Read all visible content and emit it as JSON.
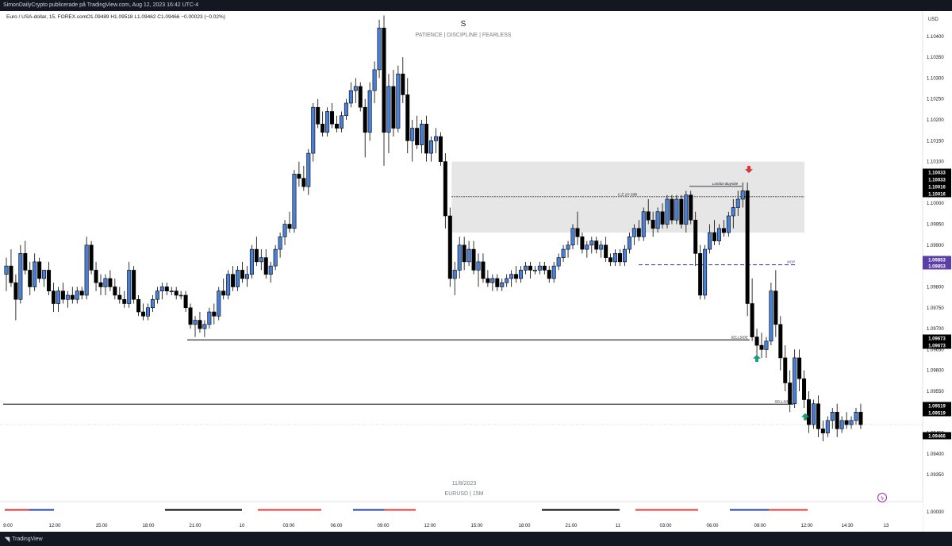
{
  "header": {
    "publish_info": "SimonDailyCrypto publicerade på TradingView.com, Aug 12, 2023 16:42 UTC-4",
    "symbol_info": "Euro / USA-dollar, 15, FOREX.com",
    "ohlc": "O1.09489  H1.09518  L1.09462  C1.09466  −0.00023 (−0.02%)"
  },
  "watermark": {
    "letter": "S",
    "motto": "PATIENCE  |  DISCIPLINE  |  FEARLESS",
    "date": "11/8/2023",
    "pair": "EURUSD  |  15M"
  },
  "footer": {
    "brand": "TradingView"
  },
  "chart_data": {
    "type": "candlestick",
    "currency_label": "USD",
    "ylim": [
      1.0932,
      1.1043
    ],
    "y_ticks": [
      "1.10400",
      "1.10350",
      "1.10300",
      "1.10250",
      "1.10200",
      "1.10150",
      "1.10100",
      "1.10050",
      "1.10000",
      "1.09950",
      "1.09900",
      "1.09850",
      "1.09800",
      "1.09750",
      "1.09700",
      "1.09650",
      "1.09600",
      "1.09550",
      "1.09500",
      "1.09450",
      "1.09400",
      "1.09350"
    ],
    "time_ticks": [
      "9:00",
      "12:00",
      "15:00",
      "18:00",
      "21:00",
      "10",
      "03:00",
      "06:00",
      "09:00",
      "12:00",
      "15:00",
      "18:00",
      "21:00",
      "11",
      "03:00",
      "06:00",
      "09:00",
      "12:00",
      "14:30",
      "13"
    ],
    "lower_pane_tick": "1.00000",
    "price_badges": [
      {
        "value": "1.10033",
        "color": "#000000"
      },
      {
        "value": "1.10033",
        "color": "#000000"
      },
      {
        "value": "1.10016",
        "color": "#000000"
      },
      {
        "value": "1.10016",
        "color": "#000000"
      },
      {
        "value": "1.09853",
        "color": "#5b3ea6"
      },
      {
        "value": "1.09853",
        "color": "#5b3ea6"
      },
      {
        "value": "1.09673",
        "color": "#000000"
      },
      {
        "value": "1.09673",
        "color": "#000000"
      },
      {
        "value": "1.09519",
        "color": "#000000"
      },
      {
        "value": "1.09519",
        "color": "#000000"
      },
      {
        "value": "1.09466",
        "color": "#000000"
      }
    ],
    "zone": {
      "top": 1.101,
      "bottom": 1.0993
    },
    "annotations": [
      {
        "label": "C.E 1H SIBI",
        "price": 1.10016
      },
      {
        "label": "London Buyside",
        "price": 1.10033
      },
      {
        "label": "MOP",
        "price": 1.09853
      },
      {
        "label": "SELLSIDE",
        "price": 1.09673
      },
      {
        "label": "SELLSIDE",
        "price": 1.09519
      }
    ],
    "arrows": [
      {
        "direction": "down",
        "color": "#e0303a"
      },
      {
        "direction": "up",
        "color": "#1a9e7a"
      },
      {
        "direction": "up",
        "color": "#1a9e7a"
      }
    ],
    "candles": [
      [
        1.0983,
        1.0987,
        1.0979,
        1.0985
      ],
      [
        1.0985,
        1.0989,
        1.098,
        1.0981
      ],
      [
        1.0981,
        1.0983,
        1.0972,
        1.0977
      ],
      [
        1.0977,
        1.099,
        1.0976,
        1.0988
      ],
      [
        1.0988,
        1.0991,
        1.0983,
        1.0984
      ],
      [
        1.0984,
        1.0986,
        1.0978,
        1.098
      ],
      [
        1.098,
        1.0988,
        1.0979,
        1.0986
      ],
      [
        1.0986,
        1.0987,
        1.0981,
        1.0982
      ],
      [
        1.0982,
        1.0984,
        1.098,
        1.0984
      ],
      [
        1.0984,
        1.0986,
        1.0978,
        1.0979
      ],
      [
        1.0979,
        1.0981,
        1.0974,
        1.0976
      ],
      [
        1.0976,
        1.098,
        1.0974,
        1.0979
      ],
      [
        1.0979,
        1.0981,
        1.0976,
        1.0977
      ],
      [
        1.0977,
        1.0979,
        1.0975,
        1.0978
      ],
      [
        1.0978,
        1.098,
        1.0976,
        1.0977
      ],
      [
        1.0977,
        1.098,
        1.0976,
        1.0979
      ],
      [
        1.0979,
        1.098,
        1.0977,
        1.0978
      ],
      [
        1.0978,
        1.0992,
        1.0977,
        1.099
      ],
      [
        1.099,
        1.0991,
        1.0983,
        1.0984
      ],
      [
        1.0984,
        1.0986,
        1.0979,
        1.0981
      ],
      [
        1.0981,
        1.0983,
        1.0978,
        1.098
      ],
      [
        1.098,
        1.0983,
        1.0978,
        1.0982
      ],
      [
        1.0982,
        1.0984,
        1.0979,
        1.098
      ],
      [
        1.098,
        1.0982,
        1.0977,
        1.0978
      ],
      [
        1.0978,
        1.098,
        1.0976,
        1.0977
      ],
      [
        1.0977,
        1.0979,
        1.0975,
        1.0976
      ],
      [
        1.0976,
        1.0986,
        1.0975,
        1.0984
      ],
      [
        1.0984,
        1.0985,
        1.0976,
        1.0977
      ],
      [
        1.0977,
        1.0978,
        1.0973,
        1.0974
      ],
      [
        1.0974,
        1.0976,
        1.0972,
        1.0973
      ],
      [
        1.0973,
        1.0976,
        1.0972,
        1.0975
      ],
      [
        1.0975,
        1.0978,
        1.0974,
        1.0977
      ],
      [
        1.0977,
        1.098,
        1.0976,
        1.0979
      ],
      [
        1.0979,
        1.0981,
        1.0977,
        1.098
      ],
      [
        1.098,
        1.0981,
        1.0978,
        1.0979
      ],
      [
        1.0979,
        1.098,
        1.0978,
        1.0979
      ],
      [
        1.0979,
        1.098,
        1.0977,
        1.0978
      ],
      [
        1.0978,
        1.0979,
        1.0977,
        1.0978
      ],
      [
        1.0978,
        1.0979,
        1.0974,
        1.0975
      ],
      [
        1.0975,
        1.0976,
        1.097,
        1.0971
      ],
      [
        1.0971,
        1.0973,
        1.0968,
        1.0972
      ],
      [
        1.0972,
        1.0974,
        1.0969,
        1.097
      ],
      [
        1.097,
        1.0972,
        1.0968,
        1.0971
      ],
      [
        1.0971,
        1.0975,
        1.097,
        1.0974
      ],
      [
        1.0974,
        1.0976,
        1.0971,
        1.0973
      ],
      [
        1.0973,
        1.098,
        1.0972,
        1.0979
      ],
      [
        1.0979,
        1.0982,
        1.0977,
        1.0978
      ],
      [
        1.0978,
        1.0984,
        1.0977,
        1.0983
      ],
      [
        1.0983,
        1.0985,
        1.0979,
        1.098
      ],
      [
        1.098,
        1.0985,
        1.0979,
        1.0984
      ],
      [
        1.0984,
        1.0986,
        1.0981,
        1.0982
      ],
      [
        1.0982,
        1.0985,
        1.098,
        1.0983
      ],
      [
        1.0983,
        1.099,
        1.0982,
        1.0989
      ],
      [
        1.0989,
        1.0992,
        1.0985,
        1.0986
      ],
      [
        1.0986,
        1.0989,
        1.0984,
        1.0987
      ],
      [
        1.0987,
        1.0989,
        1.0982,
        1.0983
      ],
      [
        1.0983,
        1.0986,
        1.0981,
        1.0985
      ],
      [
        1.0985,
        1.099,
        1.0984,
        1.0989
      ],
      [
        1.0989,
        1.0993,
        1.0987,
        1.0992
      ],
      [
        1.0992,
        1.0996,
        1.099,
        1.0995
      ],
      [
        1.0995,
        1.0998,
        1.0993,
        1.0994
      ],
      [
        1.0994,
        1.1008,
        1.0993,
        1.1007
      ],
      [
        1.1007,
        1.101,
        1.1004,
        1.1006
      ],
      [
        1.1006,
        1.1009,
        1.1003,
        1.1004
      ],
      [
        1.1004,
        1.1013,
        1.1002,
        1.1012
      ],
      [
        1.1012,
        1.1024,
        1.101,
        1.1023
      ],
      [
        1.1023,
        1.1025,
        1.1018,
        1.1019
      ],
      [
        1.1019,
        1.1022,
        1.1016,
        1.1017
      ],
      [
        1.1017,
        1.1023,
        1.1016,
        1.1022
      ],
      [
        1.1022,
        1.1024,
        1.1018,
        1.1019
      ],
      [
        1.1019,
        1.1021,
        1.1017,
        1.1018
      ],
      [
        1.1018,
        1.1022,
        1.1017,
        1.1021
      ],
      [
        1.1021,
        1.1025,
        1.102,
        1.1024
      ],
      [
        1.1024,
        1.1029,
        1.1023,
        1.1027
      ],
      [
        1.1027,
        1.103,
        1.1024,
        1.1028
      ],
      [
        1.1028,
        1.1029,
        1.1022,
        1.1023
      ],
      [
        1.1023,
        1.1025,
        1.1011,
        1.1017
      ],
      [
        1.1017,
        1.1029,
        1.1015,
        1.1027
      ],
      [
        1.1027,
        1.1034,
        1.1024,
        1.1032
      ],
      [
        1.1032,
        1.1044,
        1.103,
        1.1042
      ],
      [
        1.1042,
        1.1045,
        1.1009,
        1.1017
      ],
      [
        1.1017,
        1.1031,
        1.1012,
        1.1028
      ],
      [
        1.1028,
        1.1032,
        1.1016,
        1.1018
      ],
      [
        1.1018,
        1.1033,
        1.1017,
        1.1031
      ],
      [
        1.1031,
        1.1035,
        1.1024,
        1.1026
      ],
      [
        1.1026,
        1.103,
        1.1012,
        1.1015
      ],
      [
        1.1015,
        1.102,
        1.101,
        1.1018
      ],
      [
        1.1018,
        1.1021,
        1.1013,
        1.1014
      ],
      [
        1.1014,
        1.102,
        1.1012,
        1.1019
      ],
      [
        1.1019,
        1.1021,
        1.101,
        1.1012
      ],
      [
        1.1012,
        1.1016,
        1.101,
        1.1015
      ],
      [
        1.1015,
        1.1018,
        1.1012,
        1.1016
      ],
      [
        1.1016,
        1.1017,
        1.1009,
        1.101
      ],
      [
        1.101,
        1.1012,
        1.0994,
        1.0997
      ],
      [
        1.0997,
        1.0999,
        1.098,
        1.0982
      ],
      [
        1.0982,
        1.0986,
        1.0978,
        1.0984
      ],
      [
        1.0984,
        1.0992,
        1.0982,
        1.099
      ],
      [
        1.099,
        1.0992,
        1.0984,
        1.0986
      ],
      [
        1.0986,
        1.0991,
        1.0985,
        1.0989
      ],
      [
        1.0989,
        1.0991,
        1.0983,
        1.0984
      ],
      [
        1.0984,
        1.0988,
        1.098,
        1.0986
      ],
      [
        1.0986,
        1.0988,
        1.0981,
        1.0982
      ],
      [
        1.0982,
        1.0984,
        1.098,
        1.0981
      ],
      [
        1.0981,
        1.0983,
        1.0979,
        1.0982
      ],
      [
        1.0982,
        1.0983,
        1.0979,
        1.098
      ],
      [
        1.098,
        1.0982,
        1.0979,
        1.0981
      ],
      [
        1.0981,
        1.0983,
        1.098,
        1.0982
      ],
      [
        1.0982,
        1.0984,
        1.098,
        1.0983
      ],
      [
        1.0983,
        1.0985,
        1.0981,
        1.0982
      ],
      [
        1.0982,
        1.0985,
        1.0981,
        1.0984
      ],
      [
        1.0984,
        1.0986,
        1.0983,
        1.0985
      ],
      [
        1.0985,
        1.0986,
        1.0982,
        1.0984
      ],
      [
        1.0984,
        1.0985,
        1.0983,
        1.0984
      ],
      [
        1.0984,
        1.0986,
        1.0983,
        1.0985
      ],
      [
        1.0985,
        1.0986,
        1.0983,
        1.0984
      ],
      [
        1.0984,
        1.0985,
        1.0981,
        1.0982
      ],
      [
        1.0982,
        1.0986,
        1.0981,
        1.0985
      ],
      [
        1.0985,
        1.0988,
        1.0984,
        1.0987
      ],
      [
        1.0987,
        1.099,
        1.0986,
        1.0989
      ],
      [
        1.0989,
        1.0991,
        1.0987,
        1.099
      ],
      [
        1.099,
        1.0995,
        1.0989,
        1.0994
      ],
      [
        1.0994,
        1.0998,
        1.099,
        1.0992
      ],
      [
        1.0992,
        1.0993,
        1.0988,
        1.0989
      ],
      [
        1.0989,
        1.0991,
        1.0987,
        1.099
      ],
      [
        1.099,
        1.0992,
        1.0988,
        1.0991
      ],
      [
        1.0991,
        1.0992,
        1.0988,
        1.0989
      ],
      [
        1.0989,
        1.0991,
        1.0987,
        1.099
      ],
      [
        1.099,
        1.0992,
        1.0986,
        1.0987
      ],
      [
        1.0987,
        1.0988,
        1.0985,
        1.0986
      ],
      [
        1.0986,
        1.0989,
        1.0985,
        1.0988
      ],
      [
        1.0988,
        1.0989,
        1.0985,
        1.0986
      ],
      [
        1.0986,
        1.099,
        1.0985,
        1.0989
      ],
      [
        1.0989,
        1.0993,
        1.0988,
        1.0992
      ],
      [
        1.0992,
        1.0995,
        1.099,
        1.0994
      ],
      [
        1.0994,
        1.0996,
        1.0991,
        1.0992
      ],
      [
        1.0992,
        1.0999,
        1.0991,
        1.0998
      ],
      [
        1.0998,
        1.1001,
        1.0995,
        1.0996
      ],
      [
        1.0996,
        1.0998,
        1.0992,
        1.0994
      ],
      [
        1.0994,
        1.0999,
        1.0993,
        1.0998
      ],
      [
        1.0998,
        1.1,
        1.0994,
        1.0995
      ],
      [
        1.0995,
        1.1002,
        1.0994,
        1.1001
      ],
      [
        1.1001,
        1.1002,
        1.0995,
        1.0996
      ],
      [
        1.0996,
        1.1002,
        1.0995,
        1.1001
      ],
      [
        1.1001,
        1.1002,
        1.0994,
        1.0995
      ],
      [
        1.0995,
        1.1003,
        1.0993,
        1.1002
      ],
      [
        1.1002,
        1.1003,
        1.0995,
        1.0996
      ],
      [
        1.0996,
        1.0998,
        1.0985,
        1.0988
      ],
      [
        1.0988,
        1.099,
        1.0977,
        1.0978
      ],
      [
        1.0978,
        1.099,
        1.0977,
        1.0989
      ],
      [
        1.0989,
        1.0995,
        1.0988,
        1.0993
      ],
      [
        1.0993,
        1.0996,
        1.099,
        1.0991
      ],
      [
        1.0991,
        1.0995,
        1.099,
        1.0994
      ],
      [
        1.0994,
        1.0996,
        1.0992,
        1.0993
      ],
      [
        1.0993,
        1.0998,
        1.0992,
        1.0997
      ],
      [
        1.0997,
        1.1001,
        1.0994,
        1.0999
      ],
      [
        1.0999,
        1.1003,
        1.0997,
        1.1001
      ],
      [
        1.1001,
        1.1005,
        1.0999,
        1.1003
      ],
      [
        1.1003,
        1.1005,
        1.0973,
        1.0976
      ],
      [
        1.0976,
        1.0982,
        1.0967,
        1.0968
      ],
      [
        1.0968,
        1.097,
        1.0962,
        1.0966
      ],
      [
        1.0966,
        1.0969,
        1.0963,
        1.0965
      ],
      [
        1.0965,
        1.0968,
        1.0963,
        1.0967
      ],
      [
        1.0967,
        1.0981,
        1.0966,
        1.0979
      ],
      [
        1.0979,
        1.0984,
        1.0968,
        1.0971
      ],
      [
        1.0971,
        1.0973,
        1.096,
        1.0963
      ],
      [
        1.0963,
        1.0966,
        1.0955,
        1.0957
      ],
      [
        1.0957,
        1.096,
        1.095,
        1.0952
      ],
      [
        1.0952,
        1.0965,
        1.0951,
        1.0963
      ],
      [
        1.0963,
        1.0965,
        1.0955,
        1.0958
      ],
      [
        1.0958,
        1.096,
        1.0951,
        1.0953
      ],
      [
        1.0953,
        1.0955,
        1.0945,
        1.0947
      ],
      [
        1.0947,
        1.0953,
        1.0946,
        1.0952
      ],
      [
        1.0952,
        1.0954,
        1.0944,
        1.0946
      ],
      [
        1.0946,
        1.0948,
        1.0943,
        1.0945
      ],
      [
        1.0945,
        1.0949,
        1.0944,
        1.0948
      ],
      [
        1.0948,
        1.0951,
        1.0946,
        1.095
      ],
      [
        1.095,
        1.0952,
        1.0944,
        1.0946
      ],
      [
        1.0946,
        1.0949,
        1.0945,
        1.0948
      ],
      [
        1.0948,
        1.095,
        1.0946,
        1.0947
      ],
      [
        1.0947,
        1.0949,
        1.0946,
        1.0948
      ],
      [
        1.0948,
        1.0951,
        1.0947,
        1.095
      ],
      [
        1.095,
        1.0952,
        1.0946,
        1.0947
      ]
    ]
  }
}
